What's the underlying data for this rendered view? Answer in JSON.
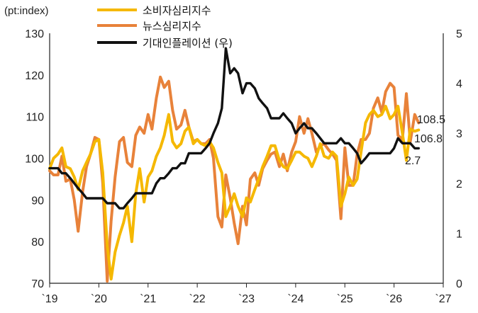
{
  "chart_data": {
    "type": "line",
    "unit_label": "(pt:index)",
    "x_ticks": [
      "`19",
      "`20",
      "`21",
      "`22",
      "`23",
      "`24",
      "`25",
      "`26",
      "`27"
    ],
    "x_range": [
      2019.0,
      2027.0
    ],
    "y_left": {
      "range": [
        70,
        130
      ],
      "ticks": [
        "70",
        "80",
        "90",
        "100",
        "110",
        "120",
        "130"
      ]
    },
    "y_right": {
      "range": [
        0,
        5
      ],
      "ticks": [
        "0",
        "1",
        "2",
        "3",
        "4",
        "5"
      ]
    },
    "series": [
      {
        "name": "소비자심리지수",
        "axis": "left",
        "color": "#f5b800",
        "end_label": "106.8",
        "points": [
          [
            2019.0,
            97.5
          ],
          [
            2019.08,
            100.0
          ],
          [
            2019.17,
            101.0
          ],
          [
            2019.25,
            102.5
          ],
          [
            2019.33,
            98.0
          ],
          [
            2019.42,
            97.5
          ],
          [
            2019.5,
            95.5
          ],
          [
            2019.58,
            92.5
          ],
          [
            2019.67,
            97.0
          ],
          [
            2019.75,
            99.0
          ],
          [
            2019.83,
            101.0
          ],
          [
            2019.92,
            104.0
          ],
          [
            2020.0,
            104.5
          ],
          [
            2020.08,
            96.5
          ],
          [
            2020.17,
            79.0
          ],
          [
            2020.25,
            71.0
          ],
          [
            2020.33,
            77.5
          ],
          [
            2020.42,
            81.5
          ],
          [
            2020.5,
            84.5
          ],
          [
            2020.58,
            88.5
          ],
          [
            2020.67,
            80.0
          ],
          [
            2020.75,
            91.5
          ],
          [
            2020.83,
            97.5
          ],
          [
            2020.92,
            89.5
          ],
          [
            2021.0,
            95.5
          ],
          [
            2021.08,
            97.0
          ],
          [
            2021.17,
            100.5
          ],
          [
            2021.25,
            102.5
          ],
          [
            2021.33,
            105.5
          ],
          [
            2021.42,
            110.5
          ],
          [
            2021.5,
            104.0
          ],
          [
            2021.58,
            102.5
          ],
          [
            2021.67,
            103.5
          ],
          [
            2021.75,
            106.5
          ],
          [
            2021.83,
            107.5
          ],
          [
            2021.92,
            103.5
          ],
          [
            2022.0,
            104.5
          ],
          [
            2022.08,
            103.5
          ],
          [
            2022.17,
            103.0
          ],
          [
            2022.25,
            104.0
          ],
          [
            2022.33,
            102.5
          ],
          [
            2022.42,
            99.0
          ],
          [
            2022.5,
            96.5
          ],
          [
            2022.58,
            86.0
          ],
          [
            2022.67,
            88.5
          ],
          [
            2022.75,
            91.5
          ],
          [
            2022.83,
            88.5
          ],
          [
            2022.92,
            86.0
          ],
          [
            2023.0,
            90.5
          ],
          [
            2023.08,
            89.5
          ],
          [
            2023.17,
            92.5
          ],
          [
            2023.25,
            95.0
          ],
          [
            2023.33,
            98.0
          ],
          [
            2023.42,
            100.5
          ],
          [
            2023.5,
            103.0
          ],
          [
            2023.58,
            103.0
          ],
          [
            2023.67,
            99.5
          ],
          [
            2023.75,
            98.0
          ],
          [
            2023.83,
            97.5
          ],
          [
            2023.92,
            99.5
          ],
          [
            2024.0,
            101.5
          ],
          [
            2024.08,
            101.5
          ],
          [
            2024.17,
            100.5
          ],
          [
            2024.25,
            100.0
          ],
          [
            2024.33,
            98.0
          ],
          [
            2024.42,
            100.5
          ],
          [
            2024.5,
            103.5
          ],
          [
            2024.58,
            100.5
          ],
          [
            2024.67,
            100.0
          ],
          [
            2024.75,
            101.5
          ],
          [
            2024.83,
            100.5
          ],
          [
            2024.92,
            88.5
          ],
          [
            2025.0,
            91.5
          ],
          [
            2025.08,
            95.5
          ],
          [
            2025.17,
            93.5
          ],
          [
            2025.25,
            95.0
          ],
          [
            2025.33,
            101.5
          ],
          [
            2025.42,
            108.5
          ],
          [
            2025.5,
            110.5
          ],
          [
            2025.58,
            111.5
          ],
          [
            2025.67,
            110.0
          ],
          [
            2025.75,
            110.5
          ],
          [
            2025.83,
            112.5
          ],
          [
            2025.92,
            109.5
          ],
          [
            2026.0,
            110.5
          ],
          [
            2026.08,
            112.5
          ],
          [
            2026.17,
            106.0
          ],
          [
            2026.25,
            99.5
          ],
          [
            2026.33,
            107.0
          ],
          [
            2026.42,
            106.5
          ],
          [
            2026.5,
            106.8
          ]
        ]
      },
      {
        "name": "뉴스심리지수",
        "axis": "left",
        "color": "#e8823a",
        "end_label": "108.5",
        "points": [
          [
            2019.0,
            97.0
          ],
          [
            2019.08,
            96.0
          ],
          [
            2019.17,
            96.0
          ],
          [
            2019.25,
            100.5
          ],
          [
            2019.33,
            94.5
          ],
          [
            2019.42,
            95.0
          ],
          [
            2019.5,
            90.0
          ],
          [
            2019.58,
            82.5
          ],
          [
            2019.67,
            92.0
          ],
          [
            2019.75,
            98.0
          ],
          [
            2019.83,
            101.0
          ],
          [
            2019.92,
            105.0
          ],
          [
            2020.0,
            104.5
          ],
          [
            2020.08,
            94.0
          ],
          [
            2020.17,
            70.5
          ],
          [
            2020.25,
            85.0
          ],
          [
            2020.33,
            95.5
          ],
          [
            2020.42,
            104.0
          ],
          [
            2020.5,
            105.0
          ],
          [
            2020.58,
            99.0
          ],
          [
            2020.67,
            98.0
          ],
          [
            2020.75,
            105.5
          ],
          [
            2020.83,
            107.5
          ],
          [
            2020.92,
            106.0
          ],
          [
            2021.0,
            110.5
          ],
          [
            2021.08,
            107.0
          ],
          [
            2021.17,
            114.5
          ],
          [
            2021.25,
            119.5
          ],
          [
            2021.33,
            117.0
          ],
          [
            2021.42,
            118.5
          ],
          [
            2021.5,
            111.5
          ],
          [
            2021.58,
            107.0
          ],
          [
            2021.67,
            108.0
          ],
          [
            2021.75,
            111.5
          ],
          [
            2021.83,
            107.5
          ],
          [
            2021.92,
            104.0
          ],
          [
            2022.0,
            104.5
          ],
          [
            2022.08,
            103.5
          ],
          [
            2022.17,
            103.5
          ],
          [
            2022.25,
            104.5
          ],
          [
            2022.33,
            100.0
          ],
          [
            2022.42,
            86.0
          ],
          [
            2022.5,
            83.5
          ],
          [
            2022.58,
            96.0
          ],
          [
            2022.67,
            90.5
          ],
          [
            2022.75,
            84.5
          ],
          [
            2022.83,
            79.5
          ],
          [
            2022.92,
            88.5
          ],
          [
            2023.0,
            84.0
          ],
          [
            2023.08,
            95.0
          ],
          [
            2023.17,
            96.5
          ],
          [
            2023.25,
            93.5
          ],
          [
            2023.33,
            97.5
          ],
          [
            2023.42,
            99.5
          ],
          [
            2023.5,
            101.0
          ],
          [
            2023.58,
            101.5
          ],
          [
            2023.67,
            98.0
          ],
          [
            2023.75,
            101.0
          ],
          [
            2023.83,
            97.0
          ],
          [
            2023.92,
            101.5
          ],
          [
            2024.0,
            104.0
          ],
          [
            2024.08,
            110.0
          ],
          [
            2024.17,
            106.0
          ],
          [
            2024.25,
            109.5
          ],
          [
            2024.33,
            106.0
          ],
          [
            2024.42,
            101.5
          ],
          [
            2024.5,
            103.0
          ],
          [
            2024.58,
            103.5
          ],
          [
            2024.67,
            102.0
          ],
          [
            2024.75,
            101.0
          ],
          [
            2024.83,
            99.5
          ],
          [
            2024.92,
            85.5
          ],
          [
            2025.0,
            102.5
          ],
          [
            2025.08,
            93.5
          ],
          [
            2025.17,
            93.5
          ],
          [
            2025.25,
            101.0
          ],
          [
            2025.33,
            104.5
          ],
          [
            2025.42,
            104.5
          ],
          [
            2025.5,
            106.0
          ],
          [
            2025.58,
            112.0
          ],
          [
            2025.67,
            114.5
          ],
          [
            2025.75,
            111.0
          ],
          [
            2025.83,
            116.0
          ],
          [
            2025.92,
            118.0
          ],
          [
            2026.0,
            117.0
          ],
          [
            2026.08,
            105.5
          ],
          [
            2026.17,
            104.5
          ],
          [
            2026.25,
            115.5
          ],
          [
            2026.33,
            104.0
          ],
          [
            2026.42,
            110.5
          ],
          [
            2026.5,
            108.5
          ]
        ]
      },
      {
        "name": "기대인플레이션 (우)",
        "axis": "right",
        "color": "#111111",
        "end_label": "2.7",
        "points": [
          [
            2019.0,
            2.3
          ],
          [
            2019.08,
            2.3
          ],
          [
            2019.17,
            2.3
          ],
          [
            2019.25,
            2.2
          ],
          [
            2019.33,
            2.2
          ],
          [
            2019.42,
            2.1
          ],
          [
            2019.5,
            2.0
          ],
          [
            2019.58,
            1.9
          ],
          [
            2019.67,
            1.8
          ],
          [
            2019.75,
            1.7
          ],
          [
            2019.83,
            1.7
          ],
          [
            2019.92,
            1.7
          ],
          [
            2020.0,
            1.7
          ],
          [
            2020.08,
            1.7
          ],
          [
            2020.17,
            1.6
          ],
          [
            2020.25,
            1.6
          ],
          [
            2020.33,
            1.6
          ],
          [
            2020.42,
            1.5
          ],
          [
            2020.5,
            1.5
          ],
          [
            2020.58,
            1.6
          ],
          [
            2020.67,
            1.7
          ],
          [
            2020.75,
            1.8
          ],
          [
            2020.83,
            1.8
          ],
          [
            2020.92,
            1.8
          ],
          [
            2021.0,
            1.8
          ],
          [
            2021.08,
            1.8
          ],
          [
            2021.17,
            2.0
          ],
          [
            2021.25,
            2.1
          ],
          [
            2021.33,
            2.1
          ],
          [
            2021.42,
            2.2
          ],
          [
            2021.5,
            2.3
          ],
          [
            2021.58,
            2.3
          ],
          [
            2021.67,
            2.4
          ],
          [
            2021.75,
            2.4
          ],
          [
            2021.83,
            2.6
          ],
          [
            2021.92,
            2.6
          ],
          [
            2022.0,
            2.6
          ],
          [
            2022.08,
            2.6
          ],
          [
            2022.17,
            2.7
          ],
          [
            2022.25,
            2.8
          ],
          [
            2022.33,
            3.0
          ],
          [
            2022.42,
            3.2
          ],
          [
            2022.5,
            3.5
          ],
          [
            2022.58,
            4.7
          ],
          [
            2022.67,
            4.2
          ],
          [
            2022.75,
            4.3
          ],
          [
            2022.83,
            4.2
          ],
          [
            2022.92,
            3.8
          ],
          [
            2023.0,
            4.0
          ],
          [
            2023.08,
            4.0
          ],
          [
            2023.17,
            3.9
          ],
          [
            2023.25,
            3.7
          ],
          [
            2023.33,
            3.6
          ],
          [
            2023.42,
            3.5
          ],
          [
            2023.5,
            3.3
          ],
          [
            2023.58,
            3.3
          ],
          [
            2023.67,
            3.3
          ],
          [
            2023.75,
            3.4
          ],
          [
            2023.83,
            3.3
          ],
          [
            2023.92,
            3.2
          ],
          [
            2024.0,
            3.0
          ],
          [
            2024.08,
            3.1
          ],
          [
            2024.17,
            3.2
          ],
          [
            2024.25,
            3.1
          ],
          [
            2024.33,
            3.1
          ],
          [
            2024.42,
            3.0
          ],
          [
            2024.5,
            2.9
          ],
          [
            2024.58,
            2.8
          ],
          [
            2024.67,
            2.8
          ],
          [
            2024.75,
            2.8
          ],
          [
            2024.83,
            2.8
          ],
          [
            2024.92,
            2.9
          ],
          [
            2025.0,
            2.8
          ],
          [
            2025.08,
            2.8
          ],
          [
            2025.17,
            2.7
          ],
          [
            2025.25,
            2.6
          ],
          [
            2025.33,
            2.4
          ],
          [
            2025.42,
            2.5
          ],
          [
            2025.5,
            2.6
          ],
          [
            2025.58,
            2.6
          ],
          [
            2025.67,
            2.6
          ],
          [
            2025.75,
            2.6
          ],
          [
            2025.83,
            2.6
          ],
          [
            2025.92,
            2.6
          ],
          [
            2026.0,
            2.7
          ],
          [
            2026.08,
            2.9
          ],
          [
            2026.17,
            2.8
          ],
          [
            2026.25,
            2.8
          ],
          [
            2026.33,
            2.8
          ],
          [
            2026.42,
            2.7
          ],
          [
            2026.5,
            2.7
          ]
        ]
      }
    ]
  }
}
